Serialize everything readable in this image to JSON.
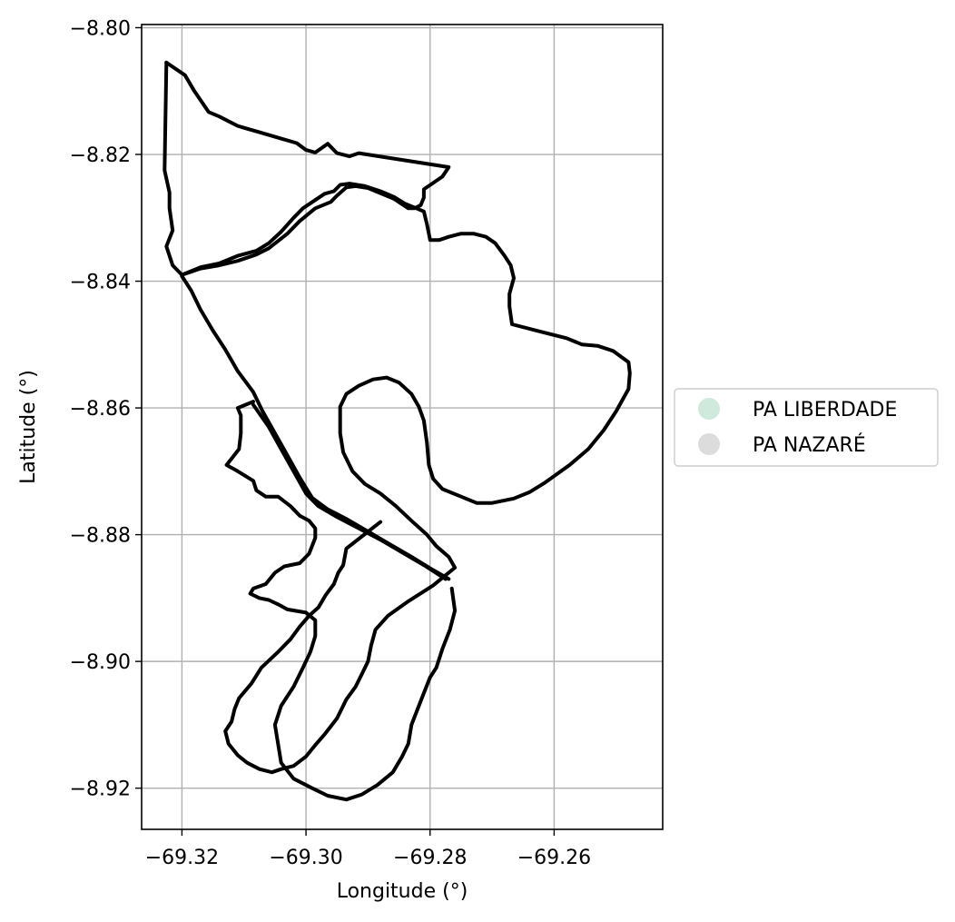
{
  "chart_data": {
    "type": "map",
    "xlabel": "Longitude (°)",
    "ylabel": "Latitude (°)",
    "xlim": [
      -69.3265,
      -69.2425
    ],
    "ylim": [
      -8.9265,
      -8.7995
    ],
    "grid": true,
    "legend_placement": "center-right-outside",
    "x_ticks": [
      {
        "value": -69.32,
        "label": "−69.32"
      },
      {
        "value": -69.3,
        "label": "−69.30"
      },
      {
        "value": -69.28,
        "label": "−69.28"
      },
      {
        "value": -69.26,
        "label": "−69.26"
      }
    ],
    "y_ticks": [
      {
        "value": -8.8,
        "label": "−8.80"
      },
      {
        "value": -8.82,
        "label": "−8.82"
      },
      {
        "value": -8.84,
        "label": "−8.84"
      },
      {
        "value": -8.86,
        "label": "−8.86"
      },
      {
        "value": -8.88,
        "label": "−8.88"
      },
      {
        "value": -8.9,
        "label": "−8.90"
      },
      {
        "value": -8.92,
        "label": "−8.92"
      }
    ],
    "legend": [
      {
        "label": "PA LIBERDADE",
        "color": "#cfe9dc"
      },
      {
        "label": "PA NAZARÉ",
        "color": "#dcdcdc"
      }
    ],
    "outline_color": "#000000",
    "polygons": [
      {
        "name": "PA LIBERDADE",
        "fill": "none",
        "coords": [
          [
            -69.3225,
            -8.8055
          ],
          [
            -69.3195,
            -8.8075
          ],
          [
            -69.318,
            -8.81
          ],
          [
            -69.3157,
            -8.8133
          ],
          [
            -69.314,
            -8.814
          ],
          [
            -69.311,
            -8.8155
          ],
          [
            -69.31,
            -8.8158
          ],
          [
            -69.3075,
            -8.8165
          ],
          [
            -69.304,
            -8.8175
          ],
          [
            -69.3015,
            -8.8182
          ],
          [
            -69.3,
            -8.8193
          ],
          [
            -69.2985,
            -8.8197
          ],
          [
            -69.2965,
            -8.8183
          ],
          [
            -69.295,
            -8.8198
          ],
          [
            -69.293,
            -8.8203
          ],
          [
            -69.2915,
            -8.8198
          ],
          [
            -69.277,
            -8.822
          ],
          [
            -69.278,
            -8.8235
          ],
          [
            -69.2795,
            -8.8245
          ],
          [
            -69.281,
            -8.8255
          ],
          [
            -69.281,
            -8.8268
          ],
          [
            -69.2815,
            -8.828
          ],
          [
            -69.2825,
            -8.8285
          ],
          [
            -69.2835,
            -8.8285
          ],
          [
            -69.2858,
            -8.827
          ],
          [
            -69.29,
            -8.8253
          ],
          [
            -69.292,
            -8.825
          ],
          [
            -69.2935,
            -8.8252
          ],
          [
            -69.295,
            -8.8265
          ],
          [
            -69.296,
            -8.8275
          ],
          [
            -69.2985,
            -8.8285
          ],
          [
            -69.301,
            -8.8305
          ],
          [
            -69.303,
            -8.8325
          ],
          [
            -69.306,
            -8.8348
          ],
          [
            -69.308,
            -8.8358
          ],
          [
            -69.311,
            -8.8368
          ],
          [
            -69.314,
            -8.8375
          ],
          [
            -69.317,
            -8.838
          ],
          [
            -69.32,
            -8.839
          ]
        ]
      },
      {
        "name": "PA LIBERDADE",
        "fill": "none",
        "coords": [
          [
            -69.3225,
            -8.8055
          ],
          [
            -69.3228,
            -8.8225
          ],
          [
            -69.322,
            -8.826
          ],
          [
            -69.322,
            -8.8285
          ],
          [
            -69.3215,
            -8.832
          ],
          [
            -69.3225,
            -8.8345
          ],
          [
            -69.3215,
            -8.8375
          ],
          [
            -69.32,
            -8.839
          ]
        ]
      },
      {
        "name": "PA LIBERDADE",
        "fill": "none",
        "coords": [
          [
            -69.32,
            -8.839
          ],
          [
            -69.317,
            -8.8378
          ],
          [
            -69.314,
            -8.8372
          ],
          [
            -69.311,
            -8.836
          ],
          [
            -69.308,
            -8.8352
          ],
          [
            -69.306,
            -8.834
          ],
          [
            -69.304,
            -8.8322
          ],
          [
            -69.302,
            -8.83
          ],
          [
            -69.3005,
            -8.8285
          ],
          [
            -69.2985,
            -8.8272
          ],
          [
            -69.297,
            -8.8262
          ],
          [
            -69.2955,
            -8.8258
          ],
          [
            -69.2945,
            -8.8248
          ],
          [
            -69.293,
            -8.8246
          ],
          [
            -69.2905,
            -8.825
          ],
          [
            -69.288,
            -8.8258
          ],
          [
            -69.2858,
            -8.8267
          ],
          [
            -69.284,
            -8.8278
          ],
          [
            -69.2822,
            -8.8285
          ],
          [
            -69.281,
            -8.829
          ],
          [
            -69.2805,
            -8.831
          ],
          [
            -69.28,
            -8.8335
          ],
          [
            -69.2785,
            -8.8335
          ],
          [
            -69.277,
            -8.833
          ],
          [
            -69.275,
            -8.8325
          ],
          [
            -69.273,
            -8.8325
          ],
          [
            -69.271,
            -8.833
          ],
          [
            -69.2695,
            -8.834
          ],
          [
            -69.268,
            -8.836
          ],
          [
            -69.267,
            -8.8375
          ],
          [
            -69.2665,
            -8.8395
          ],
          [
            -69.2672,
            -8.842
          ],
          [
            -69.2672,
            -8.844
          ],
          [
            -69.2668,
            -8.8468
          ],
          [
            -69.262,
            -8.848
          ],
          [
            -69.258,
            -8.849
          ],
          [
            -69.2555,
            -8.85
          ],
          [
            -69.253,
            -8.8502
          ],
          [
            -69.2505,
            -8.851
          ],
          [
            -69.248,
            -8.8528
          ],
          [
            -69.2478,
            -8.8545
          ],
          [
            -69.248,
            -8.857
          ],
          [
            -69.25,
            -8.8605
          ],
          [
            -69.252,
            -8.8635
          ],
          [
            -69.2545,
            -8.8665
          ],
          [
            -69.2575,
            -8.869
          ],
          [
            -69.2615,
            -8.8718
          ],
          [
            -69.264,
            -8.8733
          ],
          [
            -69.2665,
            -8.8743
          ],
          [
            -69.27,
            -8.875
          ],
          [
            -69.2725,
            -8.875
          ],
          [
            -69.275,
            -8.874
          ],
          [
            -69.278,
            -8.8728
          ],
          [
            -69.2795,
            -8.8712
          ],
          [
            -69.2802,
            -8.869
          ],
          [
            -69.2805,
            -8.8655
          ],
          [
            -69.281,
            -8.862
          ],
          [
            -69.2818,
            -8.8598
          ],
          [
            -69.283,
            -8.8578
          ],
          [
            -69.285,
            -8.856
          ],
          [
            -69.287,
            -8.8552
          ],
          [
            -69.2892,
            -8.8555
          ],
          [
            -69.2915,
            -8.8565
          ],
          [
            -69.2935,
            -8.8578
          ],
          [
            -69.2945,
            -8.8598
          ],
          [
            -69.2945,
            -8.864
          ],
          [
            -69.294,
            -8.867
          ],
          [
            -69.2925,
            -8.87
          ],
          [
            -69.2905,
            -8.872
          ],
          [
            -69.288,
            -8.8735
          ],
          [
            -69.2855,
            -8.8755
          ],
          [
            -69.283,
            -8.8778
          ],
          [
            -69.2805,
            -8.88
          ],
          [
            -69.279,
            -8.8818
          ],
          [
            -69.277,
            -8.8835
          ],
          [
            -69.276,
            -8.8852
          ],
          [
            -69.2795,
            -8.888
          ],
          [
            -69.2835,
            -8.8905
          ],
          [
            -69.2868,
            -8.8928
          ],
          [
            -69.2888,
            -8.895
          ],
          [
            -69.2895,
            -8.8975
          ],
          [
            -69.29,
            -8.9
          ],
          [
            -69.291,
            -8.902
          ],
          [
            -69.292,
            -8.904
          ],
          [
            -69.2935,
            -8.906
          ],
          [
            -69.295,
            -8.909
          ],
          [
            -69.297,
            -8.9115
          ],
          [
            -69.2985,
            -8.9132
          ],
          [
            -69.3,
            -8.915
          ],
          [
            -69.302,
            -8.9165
          ],
          [
            -69.304,
            -8.917
          ],
          [
            -69.3055,
            -8.9175
          ],
          [
            -69.3075,
            -8.917
          ],
          [
            -69.3095,
            -8.916
          ],
          [
            -69.311,
            -8.9148
          ],
          [
            -69.3125,
            -8.913
          ],
          [
            -69.313,
            -8.911
          ],
          [
            -69.312,
            -8.9095
          ],
          [
            -69.3115,
            -8.9075
          ],
          [
            -69.3108,
            -8.9058
          ],
          [
            -69.3088,
            -8.9035
          ],
          [
            -69.3072,
            -8.901
          ],
          [
            -69.3045,
            -8.8985
          ],
          [
            -69.3025,
            -8.8965
          ],
          [
            -69.301,
            -8.8945
          ],
          [
            -69.2995,
            -8.8928
          ],
          [
            -69.298,
            -8.8915
          ],
          [
            -69.2968,
            -8.8895
          ],
          [
            -69.2955,
            -8.8878
          ],
          [
            -69.2948,
            -8.886
          ],
          [
            -69.294,
            -8.8848
          ],
          [
            -69.2935,
            -8.8822
          ],
          [
            -69.288,
            -8.878
          ]
        ]
      },
      {
        "name": "PA NAZARÉ",
        "fill": "none",
        "coords": [
          [
            -69.32,
            -8.8392
          ],
          [
            -69.3185,
            -8.8415
          ],
          [
            -69.317,
            -8.8445
          ],
          [
            -69.315,
            -8.8478
          ],
          [
            -69.313,
            -8.8508
          ],
          [
            -69.311,
            -8.8542
          ],
          [
            -69.3085,
            -8.8575
          ],
          [
            -69.307,
            -8.8605
          ],
          [
            -69.305,
            -8.864
          ],
          [
            -69.303,
            -8.8675
          ],
          [
            -69.301,
            -8.871
          ],
          [
            -69.299,
            -8.8742
          ],
          [
            -69.2965,
            -8.876
          ],
          [
            -69.2935,
            -8.8775
          ],
          [
            -69.29,
            -8.8795
          ],
          [
            -69.2865,
            -8.8815
          ],
          [
            -69.283,
            -8.8835
          ],
          [
            -69.28,
            -8.8853
          ],
          [
            -69.277,
            -8.887
          ]
        ]
      },
      {
        "name": "PA NAZARÉ",
        "fill": "none",
        "coords": [
          [
            -69.3085,
            -8.859
          ],
          [
            -69.311,
            -8.86
          ],
          [
            -69.3105,
            -8.8612
          ],
          [
            -69.3105,
            -8.864
          ],
          [
            -69.3108,
            -8.8665
          ],
          [
            -69.3128,
            -8.869
          ],
          [
            -69.311,
            -8.87
          ],
          [
            -69.3085,
            -8.8715
          ],
          [
            -69.308,
            -8.873
          ],
          [
            -69.3065,
            -8.874
          ],
          [
            -69.3045,
            -8.874
          ],
          [
            -69.3025,
            -8.8755
          ],
          [
            -69.301,
            -8.877
          ],
          [
            -69.2995,
            -8.8778
          ],
          [
            -69.2985,
            -8.879
          ],
          [
            -69.2985,
            -8.8805
          ],
          [
            -69.2995,
            -8.883
          ],
          [
            -69.301,
            -8.8845
          ],
          [
            -69.3035,
            -8.885
          ],
          [
            -69.305,
            -8.886
          ],
          [
            -69.3065,
            -8.8878
          ],
          [
            -69.3085,
            -8.8885
          ],
          [
            -69.309,
            -8.8893
          ],
          [
            -69.3075,
            -8.89
          ],
          [
            -69.306,
            -8.8903
          ],
          [
            -69.3045,
            -8.891
          ],
          [
            -69.303,
            -8.8918
          ],
          [
            -69.3,
            -8.8923
          ],
          [
            -69.2985,
            -8.8935
          ],
          [
            -69.2985,
            -8.896
          ],
          [
            -69.2993,
            -8.8985
          ],
          [
            -69.3005,
            -8.901
          ],
          [
            -69.302,
            -8.904
          ],
          [
            -69.304,
            -8.907
          ],
          [
            -69.305,
            -8.91
          ],
          [
            -69.3045,
            -8.913
          ],
          [
            -69.304,
            -8.916
          ],
          [
            -69.302,
            -8.9185
          ],
          [
            -69.299,
            -8.92
          ],
          [
            -69.2965,
            -8.9212
          ],
          [
            -69.2935,
            -8.9218
          ],
          [
            -69.291,
            -8.921
          ],
          [
            -69.2885,
            -8.9195
          ],
          [
            -69.286,
            -8.9175
          ],
          [
            -69.2845,
            -8.915
          ],
          [
            -69.2835,
            -8.913
          ],
          [
            -69.283,
            -8.91
          ],
          [
            -69.282,
            -8.9075
          ],
          [
            -69.281,
            -8.905
          ],
          [
            -69.28,
            -8.9025
          ],
          [
            -69.279,
            -8.901
          ],
          [
            -69.278,
            -8.898
          ],
          [
            -69.2768,
            -8.895
          ],
          [
            -69.276,
            -8.892
          ],
          [
            -69.2765,
            -8.8885
          ]
        ]
      },
      {
        "name": "PA NAZARÉ",
        "fill": "none",
        "coords": [
          [
            -69.3085,
            -8.8595
          ],
          [
            -69.306,
            -8.863
          ],
          [
            -69.304,
            -8.8665
          ],
          [
            -69.302,
            -8.87
          ],
          [
            -69.3,
            -8.8735
          ],
          [
            -69.298,
            -8.8755
          ],
          [
            -69.295,
            -8.8772
          ],
          [
            -69.2915,
            -8.879
          ],
          [
            -69.288,
            -8.8808
          ],
          [
            -69.2845,
            -8.8828
          ],
          [
            -69.281,
            -8.8848
          ],
          [
            -69.2775,
            -8.887
          ]
        ]
      }
    ]
  }
}
